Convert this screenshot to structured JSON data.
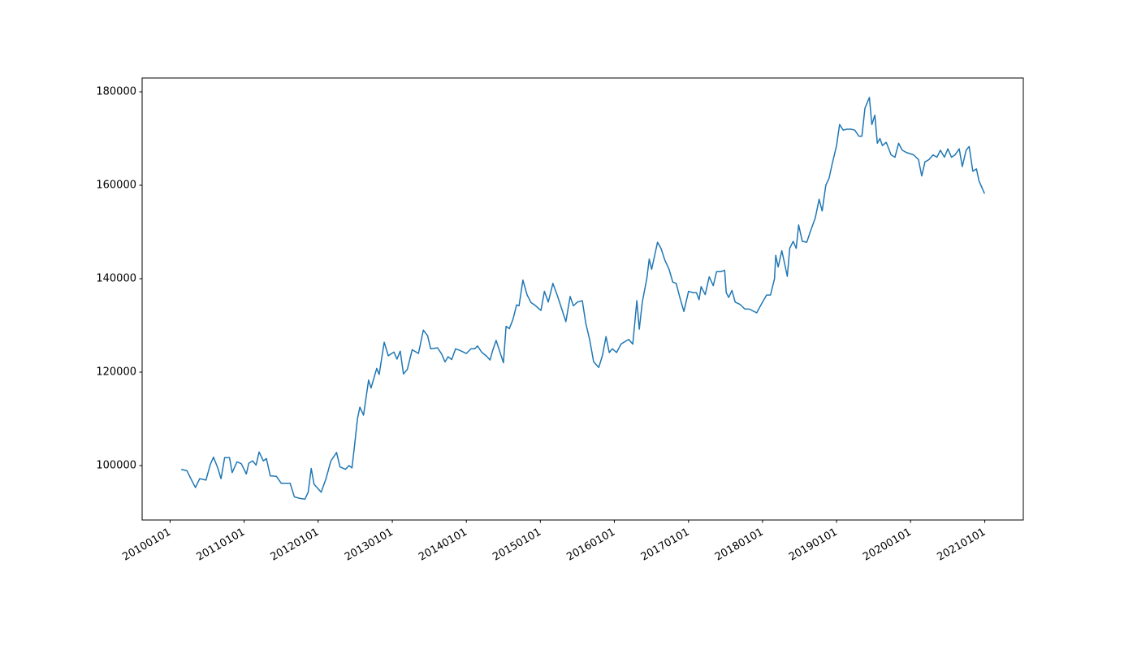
{
  "chart_data": {
    "type": "line",
    "x": [
      "2010-02-25",
      "2010-03-25",
      "2010-04-12",
      "2010-05-06",
      "2010-05-27",
      "2010-06-27",
      "2010-07-18",
      "2010-08-03",
      "2010-08-24",
      "2010-09-09",
      "2010-09-27",
      "2010-10-21",
      "2010-11-03",
      "2010-11-27",
      "2010-12-18",
      "2011-01-12",
      "2011-01-24",
      "2011-02-12",
      "2011-03-01",
      "2011-03-16",
      "2011-04-06",
      "2011-04-21",
      "2011-05-10",
      "2011-06-09",
      "2011-07-03",
      "2011-08-16",
      "2011-09-06",
      "2011-10-01",
      "2011-10-28",
      "2011-11-13",
      "2011-11-28",
      "2011-12-12",
      "2012-01-16",
      "2012-02-09",
      "2012-03-04",
      "2012-04-01",
      "2012-04-18",
      "2012-05-15",
      "2012-06-01",
      "2012-06-16",
      "2012-06-28",
      "2012-07-13",
      "2012-07-25",
      "2012-08-12",
      "2012-09-06",
      "2012-09-18",
      "2012-10-16",
      "2012-10-28",
      "2012-11-22",
      "2012-12-12",
      "2013-01-09",
      "2013-01-24",
      "2013-02-09",
      "2013-02-25",
      "2013-03-16",
      "2013-04-09",
      "2013-05-10",
      "2013-06-03",
      "2013-06-24",
      "2013-07-09",
      "2013-08-12",
      "2013-09-01",
      "2013-09-18",
      "2013-10-03",
      "2013-10-21",
      "2013-11-09",
      "2013-12-03",
      "2014-01-01",
      "2014-01-24",
      "2014-02-12",
      "2014-02-25",
      "2014-03-19",
      "2014-04-09",
      "2014-04-28",
      "2014-05-10",
      "2014-05-28",
      "2014-06-12",
      "2014-07-03",
      "2014-07-16",
      "2014-08-01",
      "2014-08-19",
      "2014-09-06",
      "2014-09-18",
      "2014-10-07",
      "2014-10-28",
      "2014-11-16",
      "2014-12-06",
      "2015-01-04",
      "2015-01-21",
      "2015-02-09",
      "2015-03-04",
      "2015-03-25",
      "2015-04-13",
      "2015-05-07",
      "2015-05-28",
      "2015-06-13",
      "2015-07-03",
      "2015-07-27",
      "2015-08-13",
      "2015-09-01",
      "2015-09-21",
      "2015-10-16",
      "2015-11-03",
      "2015-11-21",
      "2015-12-07",
      "2015-12-22",
      "2016-01-12",
      "2016-02-03",
      "2016-02-21",
      "2016-03-12",
      "2016-04-01",
      "2016-04-21",
      "2016-05-03",
      "2016-05-18",
      "2016-06-09",
      "2016-06-21",
      "2016-07-03",
      "2016-07-18",
      "2016-08-01",
      "2016-08-18",
      "2016-09-06",
      "2016-09-27",
      "2016-10-15",
      "2016-11-01",
      "2016-11-19",
      "2016-12-09",
      "2017-01-01",
      "2017-01-24",
      "2017-02-09",
      "2017-02-22",
      "2017-03-04",
      "2017-03-24",
      "2017-04-13",
      "2017-05-03",
      "2017-05-19",
      "2017-06-09",
      "2017-06-28",
      "2017-07-06",
      "2017-07-18",
      "2017-08-03",
      "2017-08-19",
      "2017-09-12",
      "2017-10-06",
      "2017-10-27",
      "2017-12-03",
      "2018-01-01",
      "2018-01-21",
      "2018-02-09",
      "2018-03-01",
      "2018-03-07",
      "2018-03-19",
      "2018-04-06",
      "2018-04-21",
      "2018-05-03",
      "2018-05-15",
      "2018-06-01",
      "2018-06-16",
      "2018-06-28",
      "2018-07-16",
      "2018-08-07",
      "2018-08-28",
      "2018-09-18",
      "2018-10-07",
      "2018-10-22",
      "2018-11-09",
      "2018-11-25",
      "2018-12-10",
      "2019-01-01",
      "2019-01-16",
      "2019-02-03",
      "2019-02-21",
      "2019-03-12",
      "2019-04-01",
      "2019-04-21",
      "2019-05-06",
      "2019-05-21",
      "2019-06-12",
      "2019-06-24",
      "2019-07-09",
      "2019-07-21",
      "2019-08-03",
      "2019-08-15",
      "2019-09-03",
      "2019-09-27",
      "2019-10-16",
      "2019-11-03",
      "2019-11-21",
      "2019-12-12",
      "2020-01-16",
      "2020-02-09",
      "2020-02-25",
      "2020-03-12",
      "2020-04-01",
      "2020-04-21",
      "2020-05-10",
      "2020-05-27",
      "2020-06-16",
      "2020-07-03",
      "2020-07-21",
      "2020-08-07",
      "2020-08-28",
      "2020-09-12",
      "2020-10-01",
      "2020-10-16",
      "2020-11-03",
      "2020-11-21",
      "2020-12-03",
      "2020-12-18",
      "2020-12-31"
    ],
    "series": [
      {
        "color": "#1f77b4",
        "values": [
          99200,
          98900,
          97300,
          95300,
          97200,
          96900,
          100200,
          101800,
          99500,
          97200,
          101700,
          101700,
          98500,
          100800,
          100400,
          98200,
          100500,
          101000,
          100100,
          102900,
          101000,
          101500,
          97800,
          97700,
          96200,
          96200,
          93300,
          93000,
          92800,
          94300,
          99400,
          96000,
          94300,
          97200,
          101000,
          102800,
          99700,
          99200,
          100000,
          99500,
          104000,
          110000,
          112500,
          110800,
          118300,
          116600,
          120800,
          119500,
          126400,
          123500,
          124300,
          122800,
          124500,
          119600,
          120600,
          124800,
          124000,
          129000,
          127800,
          125000,
          125200,
          123900,
          122200,
          123300,
          122700,
          125000,
          124600,
          124000,
          125000,
          125000,
          125600,
          124200,
          123500,
          122600,
          124500,
          126800,
          124800,
          122000,
          129800,
          129300,
          131300,
          134400,
          134200,
          139700,
          136500,
          134900,
          134300,
          133200,
          137300,
          135000,
          139000,
          136500,
          134000,
          130800,
          136200,
          134200,
          135000,
          135300,
          130500,
          127000,
          122200,
          121000,
          123500,
          127600,
          124200,
          125000,
          124200,
          126000,
          126500,
          127000,
          126000,
          135300,
          129200,
          135000,
          140000,
          144200,
          142000,
          145000,
          147800,
          146500,
          144000,
          142000,
          139300,
          139000,
          136000,
          133000,
          137300,
          137000,
          137000,
          135500,
          138300,
          136600,
          140400,
          138500,
          141500,
          141500,
          141800,
          137000,
          136000,
          137500,
          135000,
          134500,
          133500,
          133500,
          132700,
          135000,
          136500,
          136500,
          140000,
          145000,
          142500,
          146000,
          143000,
          140500,
          146500,
          148000,
          146500,
          151500,
          148000,
          147800,
          150500,
          153000,
          157000,
          154500,
          160000,
          161500,
          164500,
          168500,
          173000,
          171800,
          172000,
          172000,
          171800,
          170500,
          170500,
          176500,
          178800,
          173000,
          175000,
          169000,
          170000,
          168500,
          169200,
          166500,
          166000,
          169000,
          167500,
          167000,
          166500,
          165500,
          162000,
          165000,
          165500,
          166500,
          166000,
          167500,
          166000,
          167800,
          166000,
          166500,
          167800,
          164000,
          167500,
          168300,
          163000,
          163500,
          161000,
          159500,
          158200
        ]
      }
    ],
    "xlim": [
      "2009-08-16",
      "2021-07-10"
    ],
    "xticks": [
      {
        "value": "2010-01-01",
        "label": "20100101"
      },
      {
        "value": "2011-01-01",
        "label": "20110101"
      },
      {
        "value": "2012-01-01",
        "label": "20120101"
      },
      {
        "value": "2013-01-01",
        "label": "20130101"
      },
      {
        "value": "2014-01-01",
        "label": "20140101"
      },
      {
        "value": "2015-01-01",
        "label": "20150101"
      },
      {
        "value": "2016-01-01",
        "label": "20160101"
      },
      {
        "value": "2017-01-01",
        "label": "20170101"
      },
      {
        "value": "2018-01-01",
        "label": "20180101"
      },
      {
        "value": "2019-01-01",
        "label": "20190101"
      },
      {
        "value": "2020-01-01",
        "label": "20200101"
      },
      {
        "value": "2021-01-01",
        "label": "20210101"
      }
    ],
    "ylim": [
      88350,
      182960
    ],
    "yticks": [
      100000,
      120000,
      140000,
      160000,
      180000
    ],
    "grid": false
  }
}
